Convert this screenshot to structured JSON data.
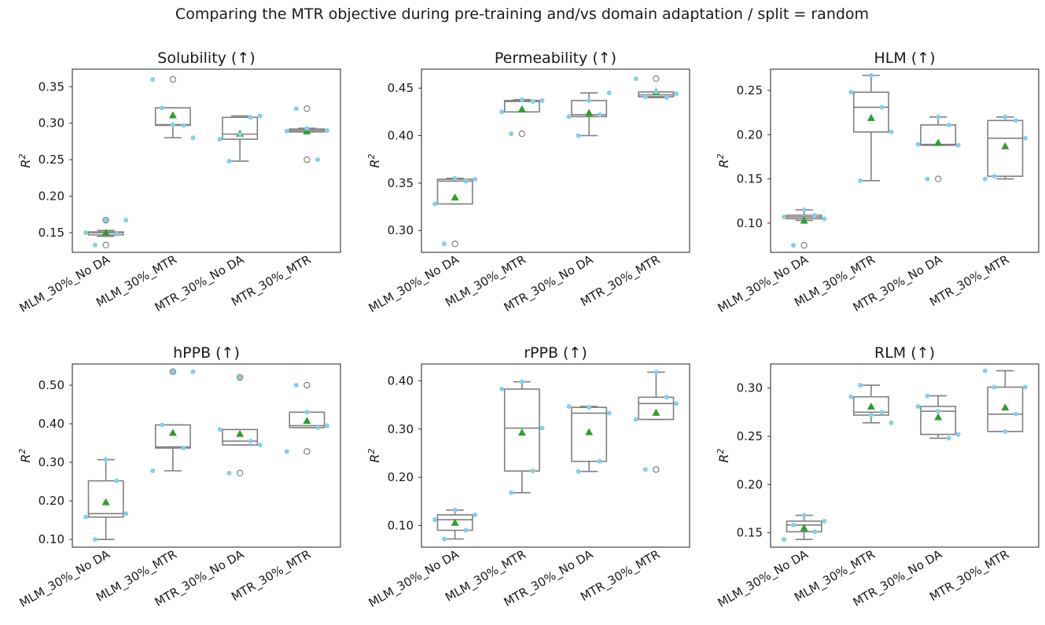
{
  "figure_title": "Comparing the MTR objective during pre-training and/vs domain adaptation / split = random",
  "colors": {
    "box": "#808080",
    "mean": "#2ca02c",
    "point": "#87ceeb",
    "outlier": "#808080"
  },
  "chart_data": [
    {
      "type": "box",
      "title": "Solubility (↑)",
      "ylabel": "R²",
      "ylim": [
        0.123,
        0.374
      ],
      "yticks": [
        0.15,
        0.2,
        0.25,
        0.3,
        0.35
      ],
      "ytick_labels": [
        "0.15",
        "0.20",
        "0.25",
        "0.30",
        "0.35"
      ],
      "categories": [
        "MLM_30%_No DA",
        "MLM_30%_MTR",
        "MTR_30%_No DA",
        "MTR_30%_MTR"
      ],
      "boxes": [
        {
          "q1": 0.147,
          "median": 0.15,
          "q3": 0.151,
          "whislo": 0.145,
          "whishi": 0.153,
          "mean": 0.15,
          "outliers": [
            0.133,
            0.167
          ],
          "points": [
            0.15,
            0.133,
            0.167,
            0.148,
            0.167
          ]
        },
        {
          "q1": 0.297,
          "median": 0.298,
          "q3": 0.321,
          "whislo": 0.28,
          "whishi": 0.321,
          "mean": 0.311,
          "outliers": [
            0.36
          ],
          "points": [
            0.36,
            0.321,
            0.298,
            0.297,
            0.28
          ]
        },
        {
          "q1": 0.278,
          "median": 0.285,
          "q3": 0.308,
          "whislo": 0.248,
          "whishi": 0.31,
          "mean": 0.286,
          "outliers": [],
          "points": [
            0.278,
            0.248,
            0.285,
            0.308,
            0.31
          ]
        },
        {
          "q1": 0.288,
          "median": 0.29,
          "q3": 0.292,
          "whislo": 0.288,
          "whishi": 0.293,
          "mean": 0.289,
          "outliers": [
            0.25,
            0.32
          ],
          "points": [
            0.289,
            0.32,
            0.293,
            0.25,
            0.29
          ]
        }
      ]
    },
    {
      "type": "box",
      "title": "Permeability (↑)",
      "ylabel": "R²",
      "ylim": [
        0.277,
        0.47
      ],
      "yticks": [
        0.3,
        0.35,
        0.4,
        0.45
      ],
      "ytick_labels": [
        "0.30",
        "0.35",
        "0.40",
        "0.45"
      ],
      "categories": [
        "MLM_30%_No DA",
        "MLM_30%_MTR",
        "MTR_30%_No DA",
        "MTR_30%_MTR"
      ],
      "boxes": [
        {
          "q1": 0.328,
          "median": 0.352,
          "q3": 0.354,
          "whislo": 0.328,
          "whishi": 0.355,
          "mean": 0.335,
          "outliers": [
            0.286
          ],
          "points": [
            0.328,
            0.286,
            0.355,
            0.352,
            0.354
          ]
        },
        {
          "q1": 0.425,
          "median": 0.436,
          "q3": 0.437,
          "whislo": 0.425,
          "whishi": 0.438,
          "mean": 0.428,
          "outliers": [
            0.402
          ],
          "points": [
            0.425,
            0.402,
            0.438,
            0.436,
            0.437
          ]
        },
        {
          "q1": 0.42,
          "median": 0.422,
          "q3": 0.437,
          "whislo": 0.4,
          "whishi": 0.445,
          "mean": 0.424,
          "outliers": [],
          "points": [
            0.42,
            0.4,
            0.437,
            0.422,
            0.445
          ]
        },
        {
          "q1": 0.441,
          "median": 0.443,
          "q3": 0.446,
          "whislo": 0.44,
          "whishi": 0.446,
          "mean": 0.446,
          "outliers": [
            0.46
          ],
          "points": [
            0.46,
            0.441,
            0.446,
            0.44,
            0.444
          ]
        }
      ]
    },
    {
      "type": "box",
      "title": "HLM (↑)",
      "ylabel": "R²",
      "ylim": [
        0.067,
        0.274
      ],
      "yticks": [
        0.1,
        0.15,
        0.2,
        0.25
      ],
      "ytick_labels": [
        "0.10",
        "0.15",
        "0.20",
        "0.25"
      ],
      "categories": [
        "MLM_30%_No DA",
        "MLM_30%_MTR",
        "MTR_30%_No DA",
        "MTR_30%_MTR"
      ],
      "boxes": [
        {
          "q1": 0.105,
          "median": 0.107,
          "q3": 0.109,
          "whislo": 0.103,
          "whishi": 0.115,
          "mean": 0.103,
          "outliers": [
            0.075
          ],
          "points": [
            0.107,
            0.075,
            0.115,
            0.109,
            0.105
          ]
        },
        {
          "q1": 0.203,
          "median": 0.231,
          "q3": 0.248,
          "whislo": 0.148,
          "whishi": 0.267,
          "mean": 0.219,
          "outliers": [],
          "points": [
            0.248,
            0.148,
            0.267,
            0.231,
            0.203
          ]
        },
        {
          "q1": 0.188,
          "median": 0.189,
          "q3": 0.211,
          "whislo": 0.188,
          "whishi": 0.22,
          "mean": 0.191,
          "outliers": [
            0.15
          ],
          "points": [
            0.189,
            0.15,
            0.22,
            0.211,
            0.188
          ]
        },
        {
          "q1": 0.153,
          "median": 0.196,
          "q3": 0.216,
          "whislo": 0.15,
          "whishi": 0.22,
          "mean": 0.187,
          "outliers": [],
          "points": [
            0.15,
            0.153,
            0.22,
            0.216,
            0.196
          ]
        }
      ]
    },
    {
      "type": "box",
      "title": "hPPB (↑)",
      "ylabel": "R²",
      "ylim": [
        0.08,
        0.555
      ],
      "yticks": [
        0.1,
        0.2,
        0.3,
        0.4,
        0.5
      ],
      "ytick_labels": [
        "0.10",
        "0.20",
        "0.30",
        "0.40",
        "0.50"
      ],
      "categories": [
        "MLM_30%_No DA",
        "MLM_30%_MTR",
        "MTR_30%_No DA",
        "MTR_30%_MTR"
      ],
      "boxes": [
        {
          "q1": 0.158,
          "median": 0.167,
          "q3": 0.252,
          "whislo": 0.1,
          "whishi": 0.307,
          "mean": 0.197,
          "outliers": [],
          "points": [
            0.158,
            0.1,
            0.307,
            0.252,
            0.167
          ]
        },
        {
          "q1": 0.337,
          "median": 0.34,
          "q3": 0.397,
          "whislo": 0.278,
          "whishi": 0.397,
          "mean": 0.377,
          "outliers": [
            0.535
          ],
          "points": [
            0.278,
            0.397,
            0.535,
            0.337,
            0.535
          ]
        },
        {
          "q1": 0.345,
          "median": 0.355,
          "q3": 0.385,
          "whislo": 0.345,
          "whishi": 0.385,
          "mean": 0.374,
          "outliers": [
            0.272,
            0.52
          ],
          "points": [
            0.385,
            0.272,
            0.52,
            0.355,
            0.345
          ]
        },
        {
          "q1": 0.39,
          "median": 0.395,
          "q3": 0.43,
          "whislo": 0.39,
          "whishi": 0.43,
          "mean": 0.408,
          "outliers": [
            0.328,
            0.5
          ],
          "points": [
            0.328,
            0.5,
            0.43,
            0.39,
            0.395
          ]
        }
      ]
    },
    {
      "type": "box",
      "title": "rPPB (↑)",
      "ylabel": "R²",
      "ylim": [
        0.055,
        0.435
      ],
      "yticks": [
        0.1,
        0.2,
        0.3,
        0.4
      ],
      "ytick_labels": [
        "0.10",
        "0.20",
        "0.30",
        "0.40"
      ],
      "categories": [
        "MLM_30%_No DA",
        "MLM_30%_MTR",
        "MTR_30%_No DA",
        "MTR_30%_MTR"
      ],
      "boxes": [
        {
          "q1": 0.09,
          "median": 0.112,
          "q3": 0.122,
          "whislo": 0.072,
          "whishi": 0.132,
          "mean": 0.106,
          "outliers": [],
          "points": [
            0.112,
            0.072,
            0.132,
            0.09,
            0.122
          ]
        },
        {
          "q1": 0.213,
          "median": 0.302,
          "q3": 0.383,
          "whislo": 0.168,
          "whishi": 0.398,
          "mean": 0.293,
          "outliers": [],
          "points": [
            0.383,
            0.168,
            0.398,
            0.213,
            0.302
          ]
        },
        {
          "q1": 0.233,
          "median": 0.333,
          "q3": 0.345,
          "whislo": 0.212,
          "whishi": 0.347,
          "mean": 0.294,
          "outliers": [],
          "points": [
            0.347,
            0.212,
            0.345,
            0.233,
            0.333
          ]
        },
        {
          "q1": 0.32,
          "median": 0.353,
          "q3": 0.366,
          "whislo": 0.32,
          "whishi": 0.418,
          "mean": 0.334,
          "outliers": [
            0.216
          ],
          "points": [
            0.32,
            0.216,
            0.418,
            0.366,
            0.353
          ]
        }
      ]
    },
    {
      "type": "box",
      "title": "RLM (↑)",
      "ylabel": "R²",
      "ylim": [
        0.135,
        0.325
      ],
      "yticks": [
        0.15,
        0.2,
        0.25,
        0.3
      ],
      "ytick_labels": [
        "0.15",
        "0.20",
        "0.25",
        "0.30"
      ],
      "categories": [
        "MLM_30%_No DA",
        "MLM_30%_MTR",
        "MTR_30%_No DA",
        "MTR_30%_MTR"
      ],
      "boxes": [
        {
          "q1": 0.151,
          "median": 0.158,
          "q3": 0.162,
          "whislo": 0.143,
          "whishi": 0.168,
          "mean": 0.155,
          "outliers": [],
          "points": [
            0.143,
            0.158,
            0.168,
            0.151,
            0.162
          ]
        },
        {
          "q1": 0.272,
          "median": 0.275,
          "q3": 0.291,
          "whislo": 0.264,
          "whishi": 0.303,
          "mean": 0.281,
          "outliers": [],
          "points": [
            0.291,
            0.303,
            0.272,
            0.275,
            0.264
          ]
        },
        {
          "q1": 0.252,
          "median": 0.276,
          "q3": 0.281,
          "whislo": 0.248,
          "whishi": 0.292,
          "mean": 0.27,
          "outliers": [],
          "points": [
            0.281,
            0.292,
            0.276,
            0.248,
            0.252
          ]
        },
        {
          "q1": 0.255,
          "median": 0.273,
          "q3": 0.301,
          "whislo": 0.255,
          "whishi": 0.318,
          "mean": 0.28,
          "outliers": [],
          "points": [
            0.318,
            0.301,
            0.255,
            0.273,
            0.301
          ]
        }
      ]
    }
  ]
}
